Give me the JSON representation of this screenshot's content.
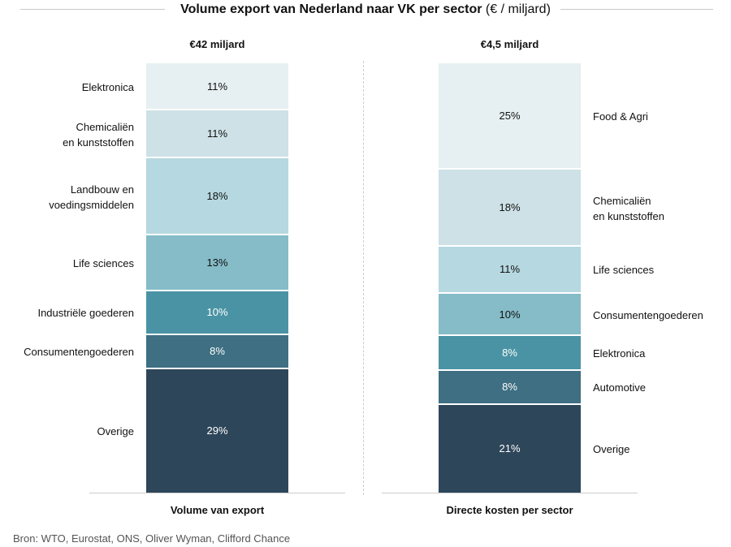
{
  "title_bold": "Volume export van Nederland naar VK per sector",
  "title_unit": " (€ / miljard)",
  "source": "Bron: WTO, Eurostat, ONS, Oliver Wyman, Clifford Chance",
  "chart_data": [
    {
      "type": "bar",
      "stacked": true,
      "total_label": "€42 miljard",
      "xlabel": "Volume van export",
      "label_position": "left",
      "categories": [
        "Elektronica",
        "Chemicaliën\nen kunststoffen",
        "Landbouw en\nvoedingsmiddelen",
        "Life sciences",
        "Industriële goederen",
        "Consumentengoederen",
        "Overige"
      ],
      "values": [
        11,
        11,
        18,
        13,
        10,
        8,
        29
      ],
      "data_labels": [
        "11%",
        "11%",
        "18%",
        "13%",
        "10%",
        "8%",
        "29%"
      ],
      "colors": [
        "#e6eff1",
        "#cde1e6",
        "#b6d8e0",
        "#85bcc8",
        "#4a93a4",
        "#3e6f82",
        "#2e465a"
      ]
    },
    {
      "type": "bar",
      "stacked": true,
      "total_label": "€4,5 miljard",
      "xlabel": "Directe kosten per sector",
      "label_position": "right",
      "categories": [
        "Food & Agri",
        "Chemicaliën\nen kunststoffen",
        "Life sciences",
        "Consumentengoederen",
        "Elektronica",
        "Automotive",
        "Overige"
      ],
      "values": [
        25,
        18,
        11,
        10,
        8,
        8,
        21
      ],
      "data_labels": [
        "25%",
        "18%",
        "11%",
        "10%",
        "8%",
        "8%",
        "21%"
      ],
      "colors": [
        "#e6eff1",
        "#cde1e6",
        "#b6d8e0",
        "#85bcc8",
        "#4a93a4",
        "#3e6f82",
        "#2e465a"
      ]
    }
  ]
}
